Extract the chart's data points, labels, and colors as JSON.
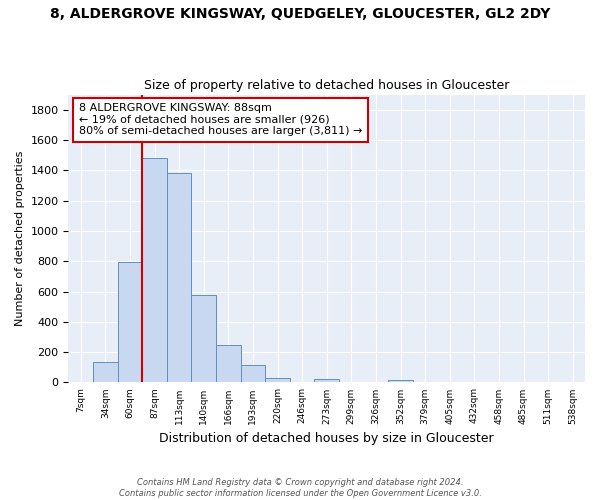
{
  "title": "8, ALDERGROVE KINGSWAY, QUEDGELEY, GLOUCESTER, GL2 2DY",
  "subtitle": "Size of property relative to detached houses in Gloucester",
  "xlabel": "Distribution of detached houses by size in Gloucester",
  "ylabel": "Number of detached properties",
  "bin_labels": [
    "7sqm",
    "34sqm",
    "60sqm",
    "87sqm",
    "113sqm",
    "140sqm",
    "166sqm",
    "193sqm",
    "220sqm",
    "246sqm",
    "273sqm",
    "299sqm",
    "326sqm",
    "352sqm",
    "379sqm",
    "405sqm",
    "432sqm",
    "458sqm",
    "485sqm",
    "511sqm",
    "538sqm"
  ],
  "bar_values": [
    0,
    135,
    795,
    1480,
    1385,
    575,
    250,
    115,
    30,
    0,
    20,
    0,
    0,
    15,
    0,
    0,
    0,
    0,
    0,
    0,
    0
  ],
  "bar_color": "#c8d8f0",
  "bar_edge_color": "#6090c0",
  "vline_x_index": 3,
  "vline_color": "#cc0000",
  "annotation_text": "8 ALDERGROVE KINGSWAY: 88sqm\n← 19% of detached houses are smaller (926)\n80% of semi-detached houses are larger (3,811) →",
  "annotation_box_color": "#ffffff",
  "annotation_box_edge": "#cc0000",
  "ylim": [
    0,
    1900
  ],
  "yticks": [
    0,
    200,
    400,
    600,
    800,
    1000,
    1200,
    1400,
    1600,
    1800
  ],
  "footer_line1": "Contains HM Land Registry data © Crown copyright and database right 2024.",
  "footer_line2": "Contains public sector information licensed under the Open Government Licence v3.0.",
  "background_color": "#ffffff",
  "plot_bg_color": "#e8eef8",
  "grid_color": "#ffffff"
}
